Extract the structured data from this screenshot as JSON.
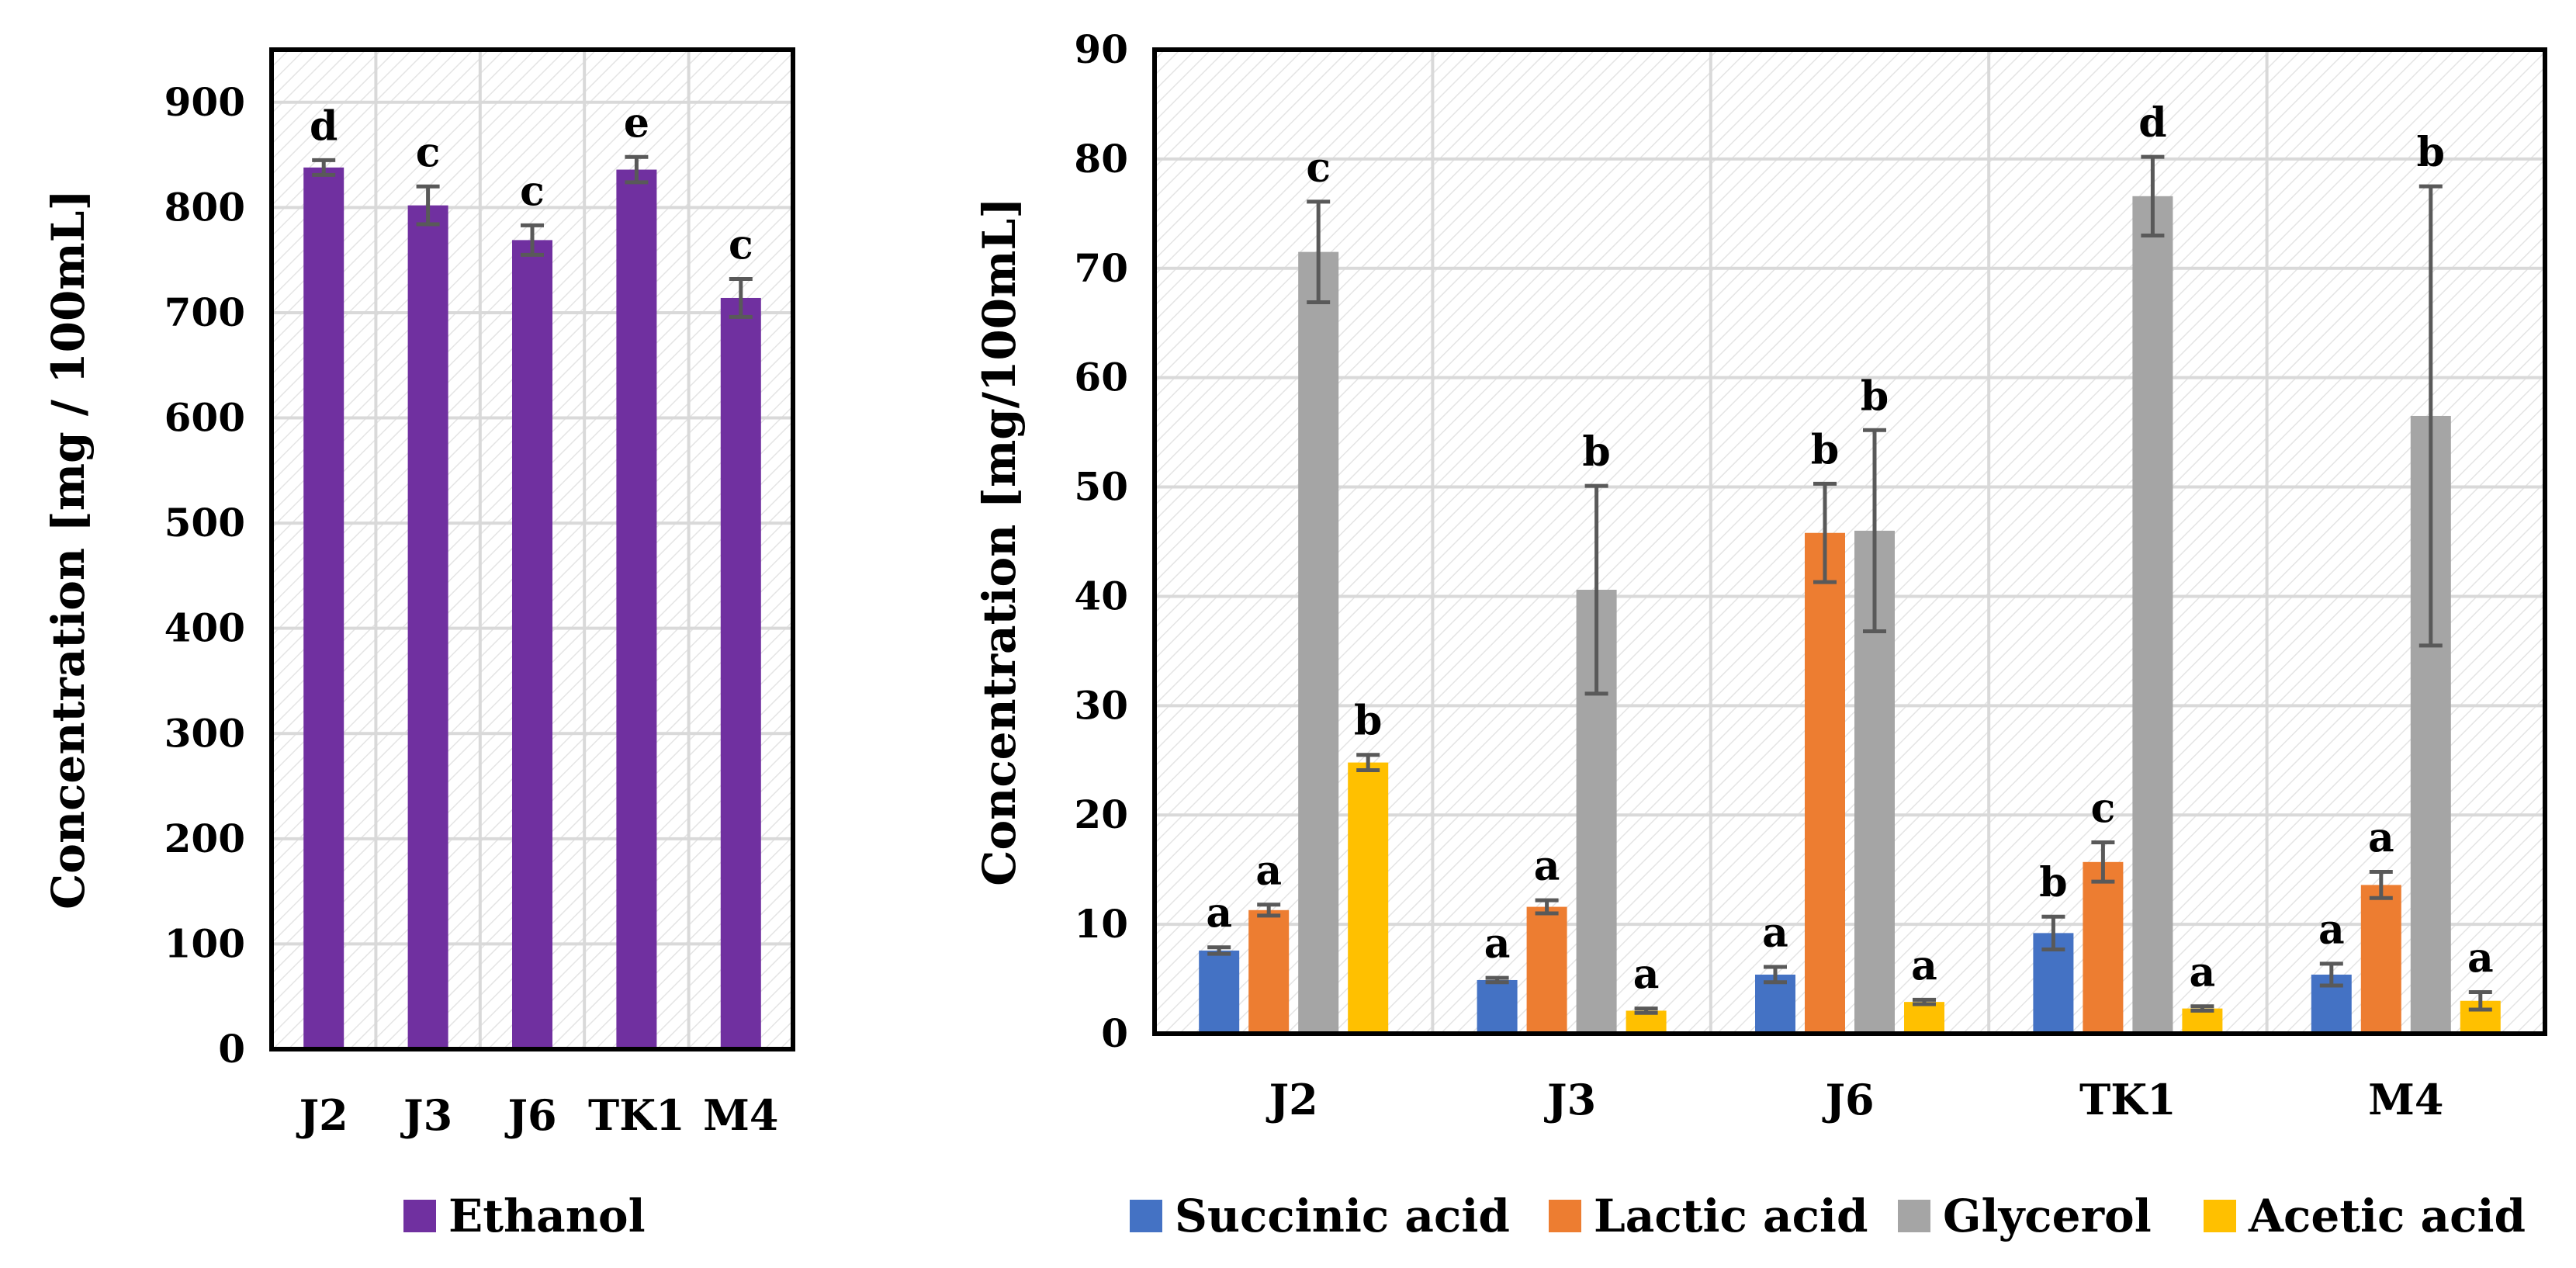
{
  "colors": {
    "ethanol": "#7030A0",
    "succinic": "#4472C4",
    "lactic": "#ED7D31",
    "glycerol": "#A5A5A5",
    "acetic": "#FFC000",
    "error": "#595959",
    "grid": "#D9D9D9",
    "hatch": "#E4E4E4"
  },
  "chart_data": [
    {
      "type": "bar",
      "title": "",
      "xlabel": "",
      "ylabel": "Concentration [mg / 100mL]",
      "ylim": [
        0,
        950
      ],
      "yticks": [
        "0",
        "100",
        "200",
        "300",
        "400",
        "500",
        "600",
        "700",
        "800",
        "900"
      ],
      "categories": [
        "J2",
        "J3",
        "J6",
        "TK1",
        "M4"
      ],
      "grid": true,
      "legend_position": "bottom",
      "series": [
        {
          "name": "Ethanol",
          "color_key": "ethanol",
          "values": [
            838,
            802,
            769,
            836,
            714
          ],
          "errors": [
            7,
            18,
            14,
            12,
            18
          ],
          "labels": [
            "d",
            "c",
            "c",
            "e",
            "c"
          ]
        }
      ]
    },
    {
      "type": "bar",
      "title": "",
      "xlabel": "",
      "ylabel": "Concentration [mg/100mL]",
      "ylim": [
        0,
        90
      ],
      "yticks": [
        "0",
        "10",
        "20",
        "30",
        "40",
        "50",
        "60",
        "70",
        "80",
        "90"
      ],
      "categories": [
        "J2",
        "J3",
        "J6",
        "TK1",
        "M4"
      ],
      "grid": true,
      "legend_position": "bottom",
      "series": [
        {
          "name": "Succinic acid",
          "color_key": "succinic",
          "values": [
            7.6,
            4.9,
            5.4,
            9.2,
            5.4
          ],
          "errors": [
            0.3,
            0.2,
            0.7,
            1.5,
            1.0
          ],
          "labels": [
            "a",
            "a",
            "a",
            "b",
            "a"
          ]
        },
        {
          "name": "Lactic acid",
          "color_key": "lactic",
          "values": [
            11.3,
            11.6,
            45.8,
            15.7,
            13.6
          ],
          "errors": [
            0.5,
            0.6,
            4.5,
            1.8,
            1.2
          ],
          "labels": [
            "a",
            "a",
            "b",
            "c",
            "a"
          ]
        },
        {
          "name": "Glycerol",
          "color_key": "glycerol",
          "values": [
            71.5,
            40.6,
            46.0,
            76.6,
            56.5
          ],
          "errors": [
            4.6,
            9.5,
            9.2,
            3.6,
            21.0
          ],
          "labels": [
            "c",
            "b",
            "b",
            "d",
            "b"
          ]
        },
        {
          "name": "Acetic acid",
          "color_key": "acetic",
          "values": [
            24.8,
            2.1,
            2.9,
            2.3,
            3.0
          ],
          "errors": [
            0.7,
            0.2,
            0.2,
            0.2,
            0.8
          ],
          "labels": [
            "b",
            "a",
            "a",
            "a",
            "a"
          ]
        }
      ]
    }
  ]
}
